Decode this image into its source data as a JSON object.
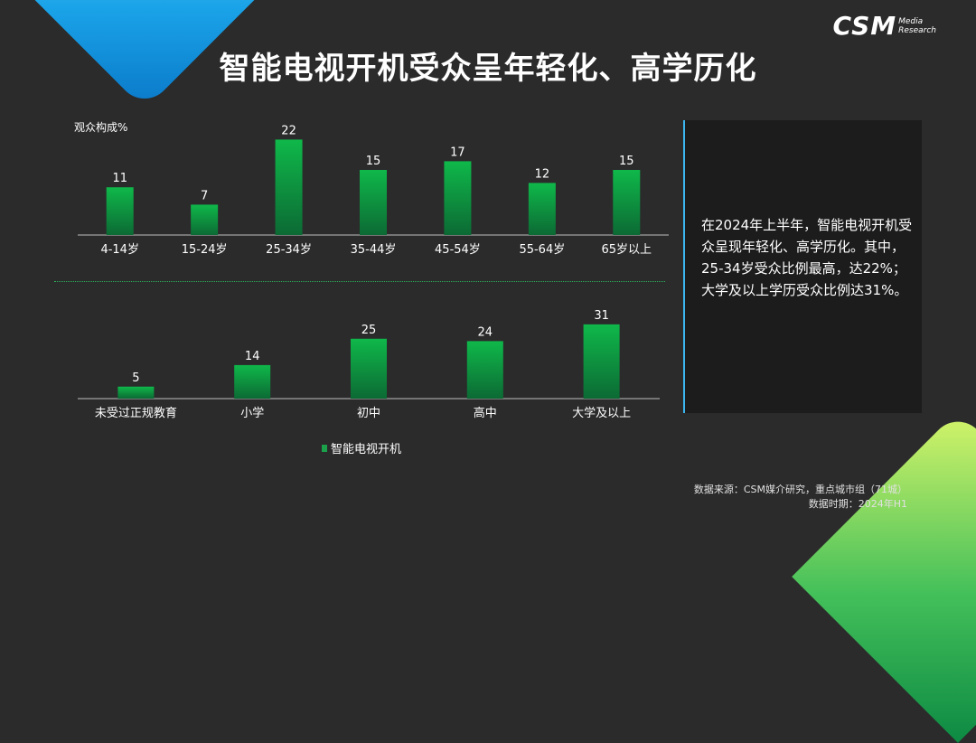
{
  "title": "智能电视开机受众呈年轻化、高学历化",
  "logo": {
    "main": "CSM",
    "sub1": "Media",
    "sub2": "Research"
  },
  "chart_data": [
    {
      "type": "bar",
      "ylabel": "观众构成%",
      "categories": [
        "4-14岁",
        "15-24岁",
        "25-34岁",
        "35-44岁",
        "45-54岁",
        "55-64岁",
        "65岁以上"
      ],
      "series": [
        {
          "name": "智能电视开机",
          "values": [
            11,
            7,
            22,
            15,
            17,
            12,
            15
          ]
        }
      ],
      "ylim": [
        0,
        25
      ]
    },
    {
      "type": "bar",
      "categories": [
        "未受过正规教育",
        "小学",
        "初中",
        "高中",
        "大学及以上"
      ],
      "series": [
        {
          "name": "智能电视开机",
          "values": [
            5,
            14,
            25,
            24,
            31
          ]
        }
      ],
      "ylim": [
        0,
        35
      ]
    }
  ],
  "legend_label": "智能电视开机",
  "panel_text": "在2024年上半年，智能电视开机受众呈现年轻化、高学历化。其中，25-34岁受众比例最高，达22%；大学及以上学历受众比例达31%。",
  "source": {
    "line1": "数据来源：CSM媒介研究，重点城市组（71城）",
    "line2": "数据时期：2024年H1"
  },
  "colors": {
    "bar_top": "#0fb84a",
    "bar_bottom": "#0c6a34",
    "accent_blue": "#3cb6f0"
  }
}
